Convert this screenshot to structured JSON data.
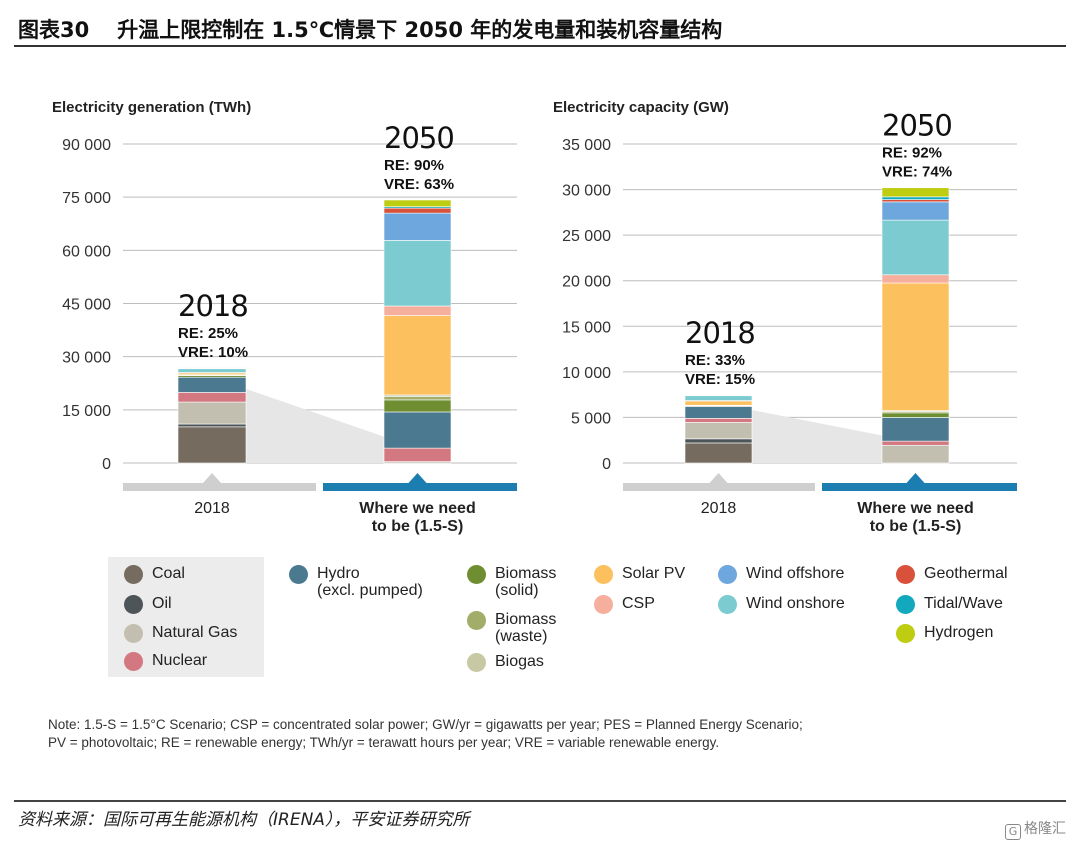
{
  "header": {
    "figure_number": "图表30",
    "title": "升温上限控制在 1.5℃情景下 2050 年的发电量和装机容量结构"
  },
  "chart_data": [
    {
      "type": "bar",
      "stacked": true,
      "panel_title": "Electricity generation (TWh)",
      "categories": [
        "2018",
        "Where we need to be (1.5-S)"
      ],
      "category_labels": [
        [
          "2018"
        ],
        [
          "Where we need",
          "to be (1.5-S)"
        ]
      ],
      "ylim": [
        0,
        90000
      ],
      "yticks": [
        0,
        15000,
        30000,
        45000,
        60000,
        75000,
        90000
      ],
      "ytick_labels": [
        "0",
        "15 000",
        "30 000",
        "45 000",
        "60 000",
        "75 000",
        "90 000"
      ],
      "grid": true,
      "bar_annotations": [
        {
          "year": "2018",
          "lines": [
            "RE: 25%",
            "VRE: 10%"
          ]
        },
        {
          "year": "2050",
          "lines": [
            "RE: 90%",
            "VRE: 63%"
          ]
        }
      ],
      "series": [
        {
          "name": "Coal",
          "values": [
            10200,
            0
          ]
        },
        {
          "name": "Oil",
          "values": [
            800,
            0
          ]
        },
        {
          "name": "Natural Gas",
          "values": [
            6200,
            400
          ]
        },
        {
          "name": "Nuclear",
          "values": [
            2700,
            3800
          ]
        },
        {
          "name": "Hydro",
          "values": [
            4300,
            10200
          ]
        },
        {
          "name": "Biomass (solid)",
          "values": [
            500,
            3400
          ]
        },
        {
          "name": "Biomass (waste)",
          "values": [
            100,
            900
          ]
        },
        {
          "name": "Biogas",
          "values": [
            100,
            500
          ]
        },
        {
          "name": "Solar PV",
          "values": [
            600,
            22400
          ]
        },
        {
          "name": "CSP",
          "values": [
            20,
            2700
          ]
        },
        {
          "name": "Wind onshore",
          "values": [
            1100,
            18500
          ]
        },
        {
          "name": "Wind offshore",
          "values": [
            100,
            7700
          ]
        },
        {
          "name": "Geothermal",
          "values": [
            100,
            1400
          ]
        },
        {
          "name": "Tidal/Wave",
          "values": [
            10,
            400
          ]
        },
        {
          "name": "Hydrogen",
          "values": [
            0,
            1900
          ]
        }
      ]
    },
    {
      "type": "bar",
      "stacked": true,
      "panel_title": "Electricity capacity (GW)",
      "categories": [
        "2018",
        "Where we need to be (1.5-S)"
      ],
      "category_labels": [
        [
          "2018"
        ],
        [
          "Where we need",
          "to be (1.5-S)"
        ]
      ],
      "ylim": [
        0,
        35000
      ],
      "yticks": [
        0,
        5000,
        10000,
        15000,
        20000,
        25000,
        30000,
        35000
      ],
      "ytick_labels": [
        "0",
        "5 000",
        "10 000",
        "15 000",
        "20 000",
        "25 000",
        "30 000",
        "35 000"
      ],
      "grid": true,
      "bar_annotations": [
        {
          "year": "2018",
          "lines": [
            "RE: 33%",
            "VRE: 15%"
          ]
        },
        {
          "year": "2050",
          "lines": [
            "RE: 92%",
            "VRE: 74%"
          ]
        }
      ],
      "series": [
        {
          "name": "Coal",
          "values": [
            2200,
            0
          ]
        },
        {
          "name": "Oil",
          "values": [
            450,
            0
          ]
        },
        {
          "name": "Natural Gas",
          "values": [
            1800,
            1950
          ]
        },
        {
          "name": "Nuclear",
          "values": [
            450,
            450
          ]
        },
        {
          "name": "Hydro",
          "values": [
            1300,
            2600
          ]
        },
        {
          "name": "Biomass (solid)",
          "values": [
            100,
            500
          ]
        },
        {
          "name": "Biomass (waste)",
          "values": [
            20,
            150
          ]
        },
        {
          "name": "Biogas",
          "values": [
            20,
            100
          ]
        },
        {
          "name": "Solar PV",
          "values": [
            500,
            14000
          ]
        },
        {
          "name": "CSP",
          "values": [
            10,
            900
          ]
        },
        {
          "name": "Wind onshore",
          "values": [
            550,
            6000
          ]
        },
        {
          "name": "Wind offshore",
          "values": [
            30,
            2000
          ]
        },
        {
          "name": "Geothermal",
          "values": [
            10,
            250
          ]
        },
        {
          "name": "Tidal/Wave",
          "values": [
            0,
            300
          ]
        },
        {
          "name": "Hydrogen",
          "values": [
            0,
            1000
          ]
        }
      ]
    }
  ],
  "legend": {
    "items": [
      {
        "name": "Coal",
        "lines": [
          "Coal"
        ],
        "color": "#756b5f"
      },
      {
        "name": "Oil",
        "lines": [
          "Oil"
        ],
        "color": "#4d5558"
      },
      {
        "name": "Natural Gas",
        "lines": [
          "Natural Gas"
        ],
        "color": "#c3bfb0"
      },
      {
        "name": "Nuclear",
        "lines": [
          "Nuclear"
        ],
        "color": "#d37781"
      },
      {
        "name": "Hydro",
        "lines": [
          "Hydro",
          "(excl. pumped)"
        ],
        "color": "#4b7990"
      },
      {
        "name": "Biomass (solid)",
        "lines": [
          "Biomass",
          "(solid)"
        ],
        "color": "#6f8e32"
      },
      {
        "name": "Biomass (waste)",
        "lines": [
          "Biomass",
          "(waste)"
        ],
        "color": "#a1ad69"
      },
      {
        "name": "Biogas",
        "lines": [
          "Biogas"
        ],
        "color": "#c7c9a4"
      },
      {
        "name": "Solar PV",
        "lines": [
          "Solar PV"
        ],
        "color": "#fcc05e"
      },
      {
        "name": "CSP",
        "lines": [
          "CSP"
        ],
        "color": "#f6ae9d"
      },
      {
        "name": "Wind offshore",
        "lines": [
          "Wind offshore"
        ],
        "color": "#6ea6de"
      },
      {
        "name": "Wind onshore",
        "lines": [
          "Wind onshore"
        ],
        "color": "#7ccbd0"
      },
      {
        "name": "Geothermal",
        "lines": [
          "Geothermal"
        ],
        "color": "#d9503b"
      },
      {
        "name": "Tidal/Wave",
        "lines": [
          "Tidal/Wave"
        ],
        "color": "#12a9bf"
      },
      {
        "name": "Hydrogen",
        "lines": [
          "Hydrogen"
        ],
        "color": "#bfcd12"
      }
    ]
  },
  "note": {
    "line1": "Note: 1.5-S = 1.5°C Scenario; CSP = concentrated solar power; GW/yr = gigawatts per year; PES = Planned Energy Scenario;",
    "line2": "PV = photovoltaic; RE = renewable energy; TWh/yr = terawatt hours per year; VRE = variable renewable energy."
  },
  "footer": {
    "source": "资料来源：国际可再生能源机构（IRENA），平安证券研究所",
    "brand_mark": "G",
    "brand": "格隆汇"
  },
  "colors": {
    "band_2018": "#cfcfcf",
    "band_2050": "#1b7db0",
    "funnel": "#e6e6e6",
    "grid": "#bdbdbd"
  }
}
